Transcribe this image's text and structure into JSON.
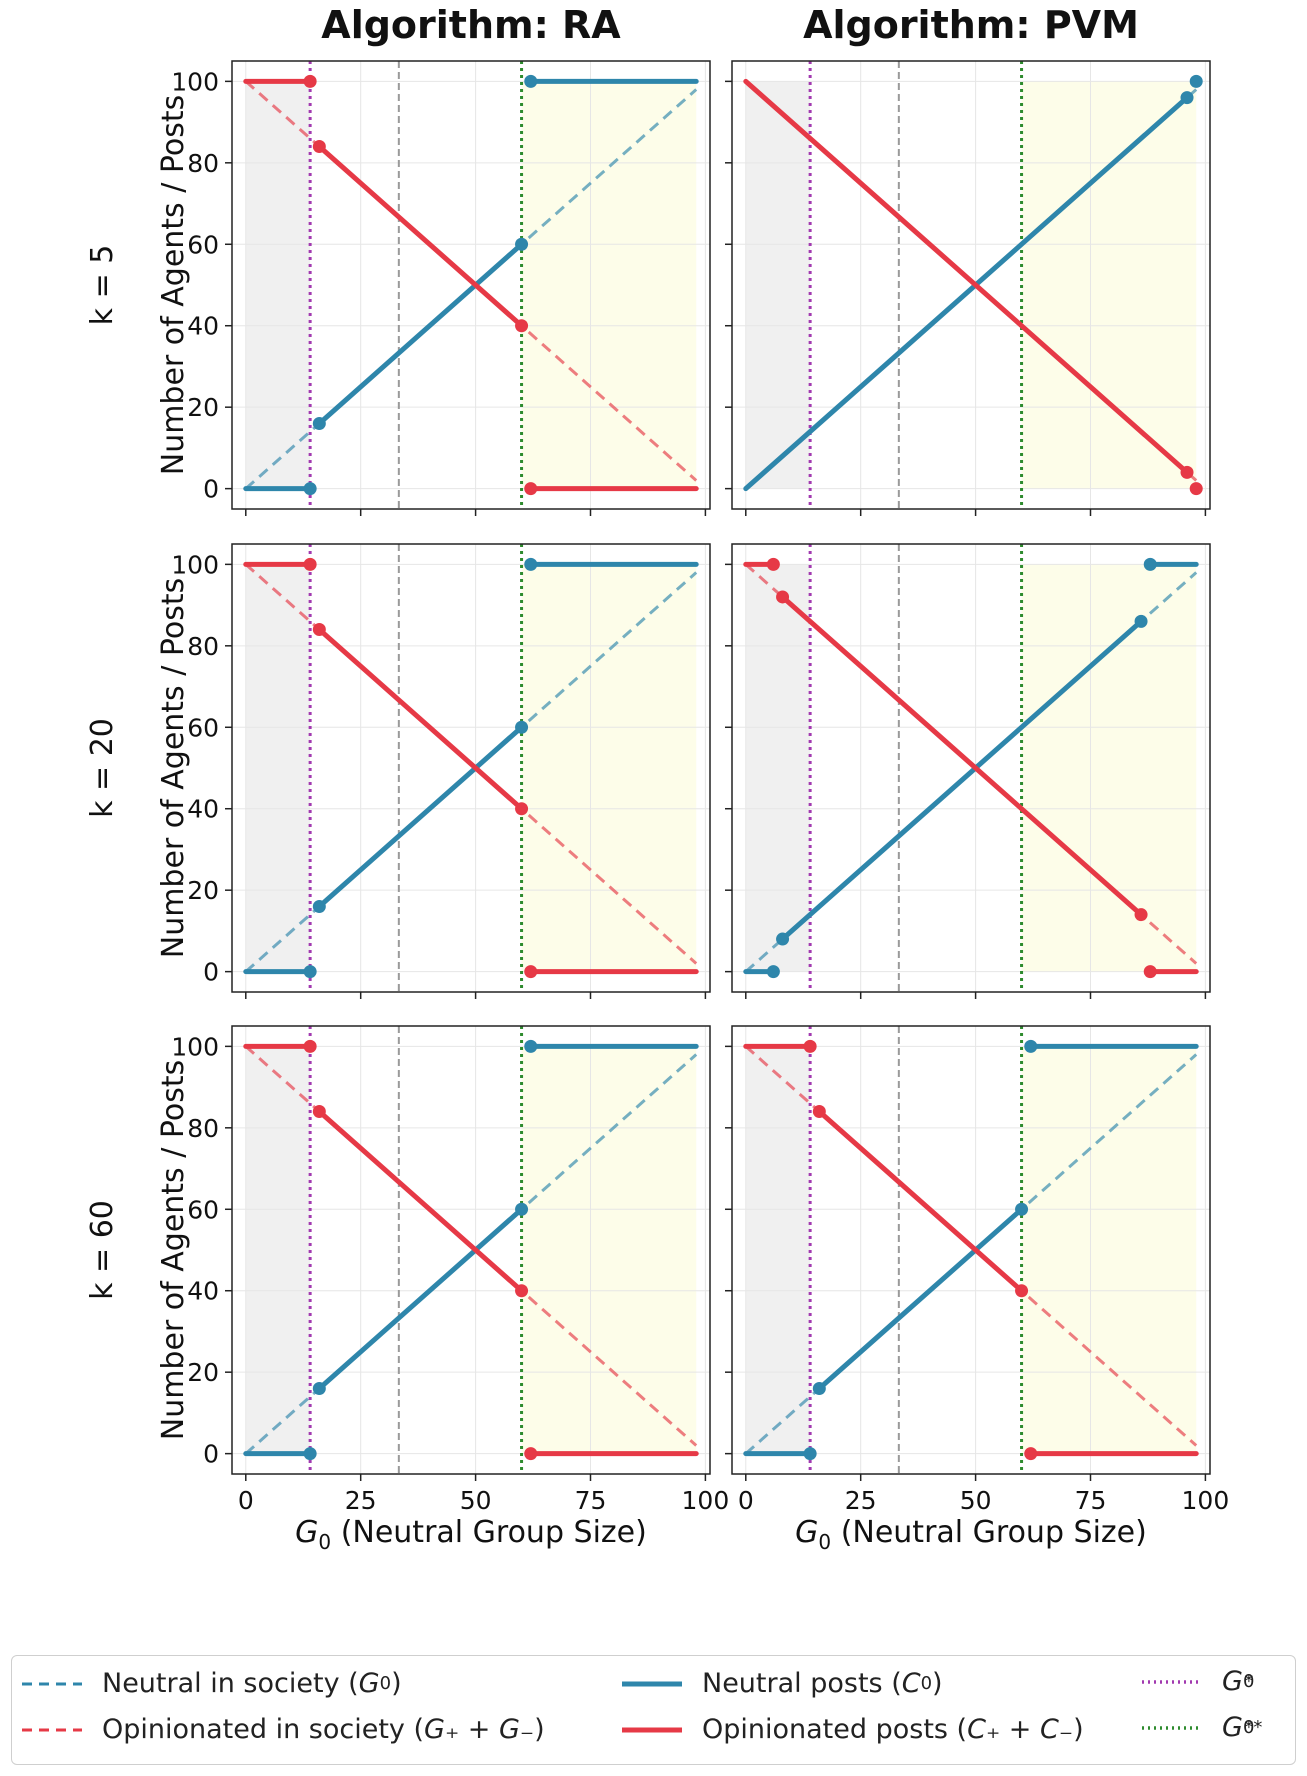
{
  "columns": [
    {
      "title": "Algorithm: RA"
    },
    {
      "title": "Algorithm: PVM"
    }
  ],
  "rows": [
    {
      "label": "k = 5"
    },
    {
      "label": "k = 20"
    },
    {
      "label": "k = 60"
    }
  ],
  "ylabel": "Number of Agents / Posts",
  "xlabel": "(Neutral Group Size)",
  "xlabel_symbol": "G",
  "xlabel_sub": "0",
  "colors": {
    "neutral": "#2e86ab",
    "opinionated": "#e63946",
    "g_star": "#a23ab0",
    "g_star_star": "#2e8b2e",
    "mid": "#9a9a9a",
    "shade_left": "#f0f0f0",
    "shade_right": "#fdfde9"
  },
  "legend": {
    "neutral_society": {
      "text": "Neutral in society (",
      "sym": "G",
      "sub": "0",
      "tail": ")"
    },
    "opinionated_society": {
      "text": "Opinionated in society (",
      "sym": "G₊ + G₋",
      "tail": ")"
    },
    "neutral_posts": {
      "text": "Neutral posts (",
      "sym": "C",
      "sub": "0",
      "tail": ")"
    },
    "opinionated_posts": {
      "text": "Opinionated posts (",
      "sym": "C₊ + C₋",
      "tail": ")"
    },
    "g_star": {
      "sym": "G",
      "sub": "0",
      "sup": "*"
    },
    "g_star_star": {
      "sym": "G",
      "sub": "0",
      "sup": "**"
    }
  },
  "chart_data": [
    {
      "type": "line",
      "algorithm": "RA",
      "k": 5,
      "xlim": [
        -3,
        101
      ],
      "ylim": [
        -5,
        105
      ],
      "xticks": [
        0,
        25,
        50,
        75,
        100
      ],
      "yticks": [
        0,
        20,
        40,
        60,
        80,
        100
      ],
      "g_star": 14,
      "g_star_star": 60,
      "mid_line": 33.3,
      "x_max": 98,
      "neutral_posts": [
        [
          [
            0,
            0
          ],
          [
            14,
            0
          ]
        ],
        [
          [
            16,
            16
          ],
          [
            60,
            60
          ]
        ],
        [
          [
            62,
            100
          ],
          [
            98,
            100
          ]
        ]
      ],
      "opinionated_posts": [
        [
          [
            0,
            100
          ],
          [
            14,
            100
          ]
        ],
        [
          [
            16,
            84
          ],
          [
            60,
            40
          ]
        ],
        [
          [
            62,
            0
          ],
          [
            98,
            0
          ]
        ]
      ]
    },
    {
      "type": "line",
      "algorithm": "PVM",
      "k": 5,
      "xlim": [
        -3,
        101
      ],
      "ylim": [
        -5,
        105
      ],
      "xticks": [
        0,
        25,
        50,
        75,
        100
      ],
      "yticks": [
        0,
        20,
        40,
        60,
        80,
        100
      ],
      "g_star": 14,
      "g_star_star": 60,
      "mid_line": 33.3,
      "x_max": 98,
      "neutral_posts": [
        [
          [
            0,
            0
          ],
          [
            96,
            96
          ]
        ],
        [
          [
            98,
            100
          ],
          [
            98,
            100
          ]
        ]
      ],
      "opinionated_posts": [
        [
          [
            0,
            100
          ],
          [
            96,
            4
          ]
        ],
        [
          [
            98,
            0
          ],
          [
            98,
            0
          ]
        ]
      ]
    },
    {
      "type": "line",
      "algorithm": "RA",
      "k": 20,
      "xlim": [
        -3,
        101
      ],
      "ylim": [
        -5,
        105
      ],
      "xticks": [
        0,
        25,
        50,
        75,
        100
      ],
      "yticks": [
        0,
        20,
        40,
        60,
        80,
        100
      ],
      "g_star": 14,
      "g_star_star": 60,
      "mid_line": 33.3,
      "x_max": 98,
      "neutral_posts": [
        [
          [
            0,
            0
          ],
          [
            14,
            0
          ]
        ],
        [
          [
            16,
            16
          ],
          [
            60,
            60
          ]
        ],
        [
          [
            62,
            100
          ],
          [
            98,
            100
          ]
        ]
      ],
      "opinionated_posts": [
        [
          [
            0,
            100
          ],
          [
            14,
            100
          ]
        ],
        [
          [
            16,
            84
          ],
          [
            60,
            40
          ]
        ],
        [
          [
            62,
            0
          ],
          [
            98,
            0
          ]
        ]
      ]
    },
    {
      "type": "line",
      "algorithm": "PVM",
      "k": 20,
      "xlim": [
        -3,
        101
      ],
      "ylim": [
        -5,
        105
      ],
      "xticks": [
        0,
        25,
        50,
        75,
        100
      ],
      "yticks": [
        0,
        20,
        40,
        60,
        80,
        100
      ],
      "g_star": 14,
      "g_star_star": 60,
      "mid_line": 33.3,
      "x_max": 98,
      "neutral_posts": [
        [
          [
            0,
            0
          ],
          [
            6,
            0
          ]
        ],
        [
          [
            8,
            8
          ],
          [
            86,
            86
          ]
        ],
        [
          [
            88,
            100
          ],
          [
            98,
            100
          ]
        ]
      ],
      "opinionated_posts": [
        [
          [
            0,
            100
          ],
          [
            6,
            100
          ]
        ],
        [
          [
            8,
            92
          ],
          [
            86,
            14
          ]
        ],
        [
          [
            88,
            0
          ],
          [
            98,
            0
          ]
        ]
      ]
    },
    {
      "type": "line",
      "algorithm": "RA",
      "k": 60,
      "xlim": [
        -3,
        101
      ],
      "ylim": [
        -5,
        105
      ],
      "xticks": [
        0,
        25,
        50,
        75,
        100
      ],
      "yticks": [
        0,
        20,
        40,
        60,
        80,
        100
      ],
      "g_star": 14,
      "g_star_star": 60,
      "mid_line": 33.3,
      "x_max": 98,
      "neutral_posts": [
        [
          [
            0,
            0
          ],
          [
            14,
            0
          ]
        ],
        [
          [
            16,
            16
          ],
          [
            60,
            60
          ]
        ],
        [
          [
            62,
            100
          ],
          [
            98,
            100
          ]
        ]
      ],
      "opinionated_posts": [
        [
          [
            0,
            100
          ],
          [
            14,
            100
          ]
        ],
        [
          [
            16,
            84
          ],
          [
            60,
            40
          ]
        ],
        [
          [
            62,
            0
          ],
          [
            98,
            0
          ]
        ]
      ]
    },
    {
      "type": "line",
      "algorithm": "PVM",
      "k": 60,
      "xlim": [
        -3,
        101
      ],
      "ylim": [
        -5,
        105
      ],
      "xticks": [
        0,
        25,
        50,
        75,
        100
      ],
      "yticks": [
        0,
        20,
        40,
        60,
        80,
        100
      ],
      "g_star": 14,
      "g_star_star": 60,
      "mid_line": 33.3,
      "x_max": 98,
      "neutral_posts": [
        [
          [
            0,
            0
          ],
          [
            14,
            0
          ]
        ],
        [
          [
            16,
            16
          ],
          [
            60,
            60
          ]
        ],
        [
          [
            62,
            100
          ],
          [
            98,
            100
          ]
        ]
      ],
      "opinionated_posts": [
        [
          [
            0,
            100
          ],
          [
            14,
            100
          ]
        ],
        [
          [
            16,
            84
          ],
          [
            60,
            40
          ]
        ],
        [
          [
            62,
            0
          ],
          [
            98,
            0
          ]
        ]
      ]
    }
  ]
}
